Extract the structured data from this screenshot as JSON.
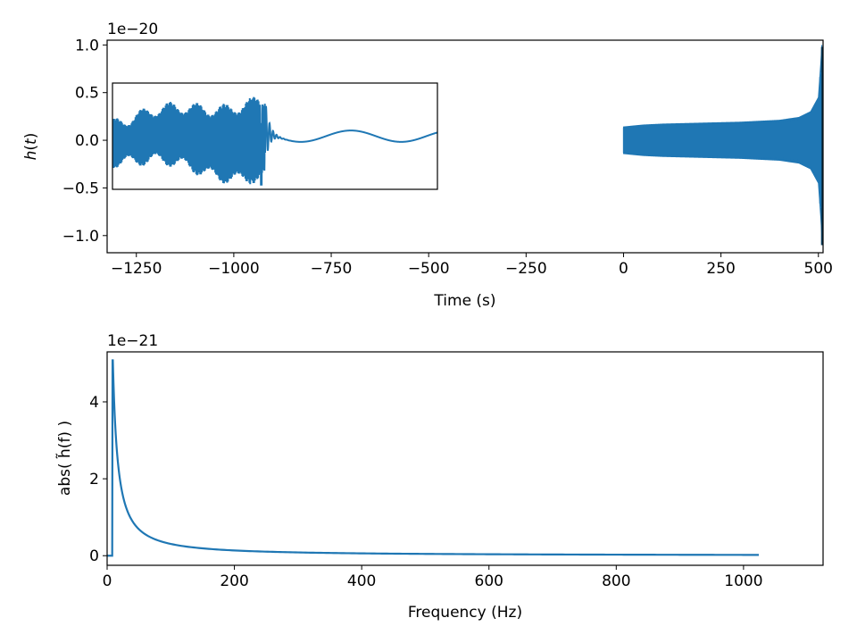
{
  "chart_data": [
    {
      "type": "line",
      "panel": "top",
      "xlabel": "Time (s)",
      "ylabel_main": "h",
      "ylabel_arg": "t",
      "offset_text": "1e−20",
      "xlim": [
        -1325,
        512
      ],
      "ylim": [
        -1.18,
        1.05
      ],
      "x_ticks": [
        -1250,
        -1000,
        -750,
        -500,
        -250,
        0,
        250,
        500
      ],
      "x_tick_labels": [
        "−1250",
        "−1000",
        "−750",
        "−500",
        "−250",
        "0",
        "250",
        "500"
      ],
      "y_ticks": [
        -1.0,
        -0.5,
        0.0,
        0.5,
        1.0
      ],
      "y_tick_labels": [
        "−1.0",
        "−0.5",
        "0.0",
        "0.5",
        "1.0"
      ],
      "color": "#1f77b4",
      "series": [
        {
          "description": "inspiral chirp",
          "t_start": 0,
          "t_merger": 509,
          "envelope": [
            {
              "t": 0,
              "amp": 0.14
            },
            {
              "t": 50,
              "amp": 0.16
            },
            {
              "t": 100,
              "amp": 0.17
            },
            {
              "t": 200,
              "amp": 0.18
            },
            {
              "t": 300,
              "amp": 0.19
            },
            {
              "t": 400,
              "amp": 0.21
            },
            {
              "t": 450,
              "amp": 0.24
            },
            {
              "t": 480,
              "amp": 0.3
            },
            {
              "t": 500,
              "amp": 0.45
            },
            {
              "t": 506,
              "amp": 0.8
            },
            {
              "t": 509,
              "amp": 1.0
            }
          ],
          "spike_min": -1.1,
          "spike_max": 0.98
        }
      ],
      "inset": {
        "description": "zoom on merger and ringdown",
        "x_range": [
          -1315,
          -485
        ],
        "y_range": [
          -0.53,
          0.59
        ]
      }
    },
    {
      "type": "line",
      "panel": "bottom",
      "xlabel": "Frequency (Hz)",
      "ylabel": "abs( h̃(f) )",
      "offset_text": "1e−21",
      "xlim": [
        0,
        1125
      ],
      "ylim": [
        -0.25,
        5.3
      ],
      "x_ticks": [
        0,
        200,
        400,
        600,
        800,
        1000
      ],
      "x_tick_labels": [
        "0",
        "200",
        "400",
        "600",
        "800",
        "1000"
      ],
      "y_ticks": [
        0,
        2,
        4
      ],
      "y_tick_labels": [
        "0",
        "2",
        "4"
      ],
      "color": "#1f77b4",
      "f_low": 8,
      "f_max": 1024,
      "x": [
        0,
        8,
        9,
        12,
        15,
        20,
        30,
        40,
        50,
        70,
        100,
        150,
        200,
        300,
        400,
        500,
        600,
        700,
        800,
        900,
        1000,
        1024
      ],
      "y": [
        0.0,
        0.0,
        5.08,
        3.5,
        2.7,
        1.9,
        1.15,
        0.82,
        0.64,
        0.45,
        0.31,
        0.21,
        0.16,
        0.11,
        0.085,
        0.07,
        0.06,
        0.05,
        0.045,
        0.04,
        0.035,
        0.034
      ]
    }
  ]
}
